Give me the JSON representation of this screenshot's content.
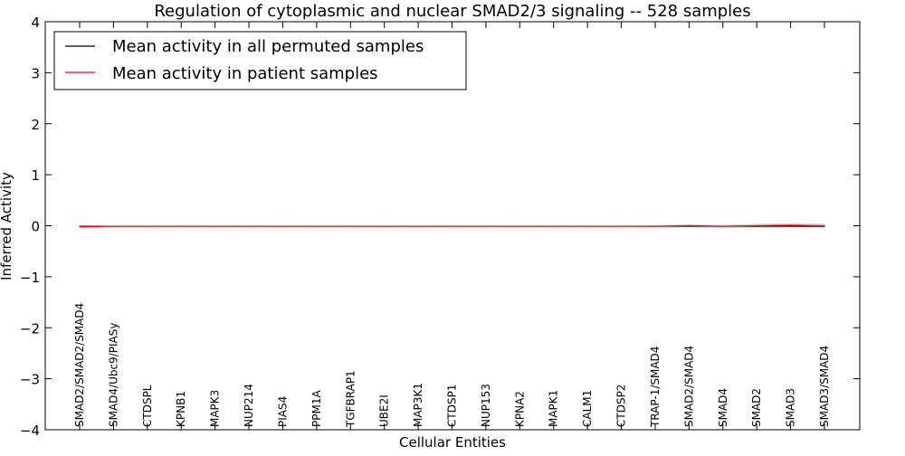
{
  "chart_data": {
    "type": "line",
    "title": "Regulation of cytoplasmic and nuclear SMAD2/3 signaling -- 528 samples",
    "xlabel": "Cellular Entities",
    "ylabel": "Inferred Activity",
    "ylim": [
      -4,
      4
    ],
    "yticks": [
      4,
      3,
      2,
      1,
      0,
      -1,
      -2,
      -3,
      -4
    ],
    "ytick_labels": [
      "4",
      "3",
      "2",
      "1",
      "0",
      "−1",
      "−2",
      "−3",
      "−4"
    ],
    "categories": [
      "SMAD2/SMAD2/SMAD4",
      "SMAD4/Ubc9/PIASy",
      "CTDSPL",
      "KPNB1",
      "MAPK3",
      "NUP214",
      "PIAS4",
      "PPM1A",
      "TGFBRAP1",
      "UBE2I",
      "MAP3K1",
      "CTDSP1",
      "NUP153",
      "KPNA2",
      "MAPK1",
      "CALM1",
      "CTDSP2",
      "TRAP-1/SMAD4",
      "SMAD2/SMAD4",
      "SMAD4",
      "SMAD2",
      "SMAD3",
      "SMAD3/SMAD4"
    ],
    "legend_position": "top-left",
    "grid": false,
    "series": [
      {
        "name": "Mean activity in all permuted samples",
        "color": "#000000",
        "values": [
          -0.01,
          -0.01,
          -0.01,
          -0.01,
          -0.01,
          -0.01,
          -0.01,
          -0.01,
          -0.01,
          -0.01,
          -0.01,
          -0.01,
          -0.01,
          -0.01,
          -0.01,
          -0.01,
          -0.01,
          -0.01,
          -0.01,
          -0.01,
          -0.01,
          -0.01,
          -0.01
        ]
      },
      {
        "name": "Mean activity in patient samples",
        "color": "#ff0000",
        "values": [
          -0.02,
          -0.01,
          -0.01,
          -0.01,
          -0.01,
          -0.01,
          -0.01,
          -0.01,
          -0.01,
          -0.01,
          -0.01,
          -0.01,
          -0.01,
          -0.01,
          -0.01,
          -0.01,
          -0.01,
          -0.01,
          0.0,
          -0.01,
          0.0,
          0.01,
          0.0
        ],
        "band_lower": [
          -0.04,
          -0.02,
          -0.02,
          -0.02,
          -0.02,
          -0.02,
          -0.02,
          -0.02,
          -0.02,
          -0.02,
          -0.02,
          -0.02,
          -0.02,
          -0.02,
          -0.02,
          -0.02,
          -0.02,
          -0.03,
          -0.03,
          -0.03,
          -0.04,
          -0.04,
          -0.05
        ],
        "band_upper": [
          0.0,
          0.0,
          0.0,
          0.0,
          0.0,
          0.0,
          0.0,
          0.0,
          0.0,
          0.0,
          0.0,
          0.0,
          0.0,
          0.0,
          0.0,
          0.0,
          0.0,
          0.01,
          0.03,
          0.02,
          0.04,
          0.05,
          0.04
        ]
      }
    ]
  }
}
